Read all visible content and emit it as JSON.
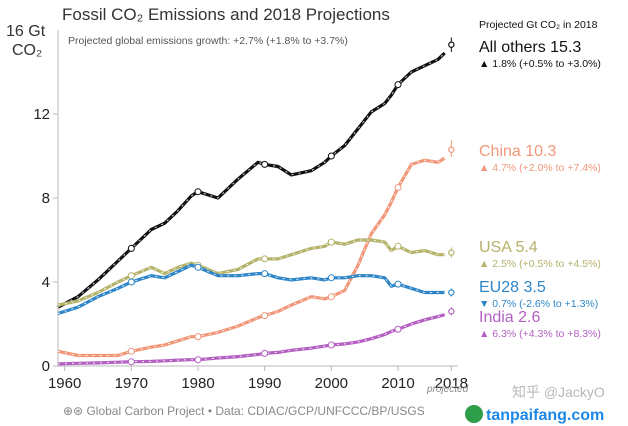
{
  "chart_data": {
    "type": "line",
    "title": "Fossil CO₂ Emissions and 2018 Projections",
    "ylabel_top": "16 Gt",
    "ylabel_unit": "CO₂",
    "annotation": "Projected global emissions growth: +2.7% (+1.8% to +3.7%)",
    "x_ticks": [
      "1960",
      "1970",
      "1980",
      "1990",
      "2000",
      "2010",
      "2018"
    ],
    "x_tick_values": [
      1960,
      1970,
      1980,
      1990,
      2000,
      2010,
      2018
    ],
    "y_ticks": [
      "0",
      "4",
      "8",
      "12"
    ],
    "y_tick_values": [
      0,
      4,
      8,
      12
    ],
    "xlim": [
      1959,
      2019
    ],
    "ylim": [
      0,
      16
    ],
    "projected_note": "projected",
    "legend_header": "Projected Gt CO₂ in 2018",
    "x": [
      1959,
      1962,
      1965,
      1968,
      1970,
      1973,
      1975,
      1977,
      1979,
      1980,
      1983,
      1986,
      1989,
      1990,
      1992,
      1994,
      1997,
      1999,
      2000,
      2002,
      2004,
      2006,
      2008,
      2009,
      2010,
      2012,
      2014,
      2016,
      2017
    ],
    "series": [
      {
        "name": "All others",
        "label": "All others 15.3",
        "growth": "▲ 1.8% (+0.5% to +3.0%)",
        "color": "#111111",
        "values": [
          2.8,
          3.3,
          4.1,
          5.0,
          5.6,
          6.5,
          6.8,
          7.4,
          8.1,
          8.3,
          8.0,
          8.9,
          9.7,
          9.6,
          9.5,
          9.1,
          9.3,
          9.7,
          10.0,
          10.5,
          11.3,
          12.1,
          12.5,
          12.9,
          13.4,
          14.0,
          14.3,
          14.6,
          14.9
        ],
        "projection": {
          "x": 2018,
          "value": 15.3,
          "low": 15.1,
          "high": 15.5
        }
      },
      {
        "name": "China",
        "label": "China 10.3",
        "growth": "▲ 4.7% (+2.0% to +7.4%)",
        "color": "#f0977a",
        "values": [
          0.7,
          0.5,
          0.5,
          0.5,
          0.7,
          0.9,
          1.0,
          1.2,
          1.4,
          1.4,
          1.6,
          1.9,
          2.3,
          2.4,
          2.6,
          2.9,
          3.3,
          3.2,
          3.3,
          3.6,
          4.8,
          6.3,
          7.2,
          7.8,
          8.5,
          9.6,
          9.8,
          9.7,
          9.9
        ],
        "projection": {
          "x": 2018,
          "value": 10.3,
          "low": 10.1,
          "high": 10.6
        }
      },
      {
        "name": "USA",
        "label": "USA 5.4",
        "growth": "▲ 2.5% (+0.5% to +4.5%)",
        "color": "#b5b26a",
        "values": [
          2.9,
          3.1,
          3.5,
          4.0,
          4.3,
          4.7,
          4.4,
          4.7,
          4.9,
          4.8,
          4.4,
          4.6,
          5.1,
          5.1,
          5.1,
          5.3,
          5.6,
          5.7,
          5.9,
          5.8,
          6.0,
          6.0,
          5.9,
          5.5,
          5.7,
          5.4,
          5.5,
          5.3,
          5.3
        ],
        "projection": {
          "x": 2018,
          "value": 5.4,
          "low": 5.3,
          "high": 5.5
        }
      },
      {
        "name": "EU28",
        "label": "EU28 3.5",
        "growth": "▼ 0.7% (-2.6% to +1.3%)",
        "color": "#2e86c8",
        "values": [
          2.5,
          2.8,
          3.3,
          3.7,
          4.0,
          4.3,
          4.2,
          4.5,
          4.8,
          4.7,
          4.3,
          4.3,
          4.4,
          4.4,
          4.2,
          4.1,
          4.2,
          4.1,
          4.2,
          4.2,
          4.3,
          4.3,
          4.2,
          3.8,
          3.9,
          3.7,
          3.5,
          3.5,
          3.5
        ],
        "projection": {
          "x": 2018,
          "value": 3.5,
          "low": 3.45,
          "high": 3.55
        }
      },
      {
        "name": "India",
        "label": "India 2.6",
        "growth": "▲ 6.3% (+4.3% to +8.3%)",
        "color": "#b45fc2",
        "values": [
          0.1,
          0.13,
          0.15,
          0.18,
          0.2,
          0.22,
          0.25,
          0.28,
          0.3,
          0.3,
          0.38,
          0.45,
          0.55,
          0.6,
          0.65,
          0.75,
          0.85,
          0.95,
          1.0,
          1.05,
          1.15,
          1.3,
          1.5,
          1.65,
          1.75,
          2.0,
          2.2,
          2.35,
          2.45
        ],
        "projection": {
          "x": 2018,
          "value": 2.6,
          "low": 2.55,
          "high": 2.65
        }
      }
    ]
  },
  "footer": {
    "source": "⊕⊛ Global Carbon Project  •  Data: CDIAC/GCP/UNFCCC/BP/USGS"
  },
  "watermark": {
    "handle": "知乎 @JackyO",
    "brand": "tanpaifang.com"
  }
}
